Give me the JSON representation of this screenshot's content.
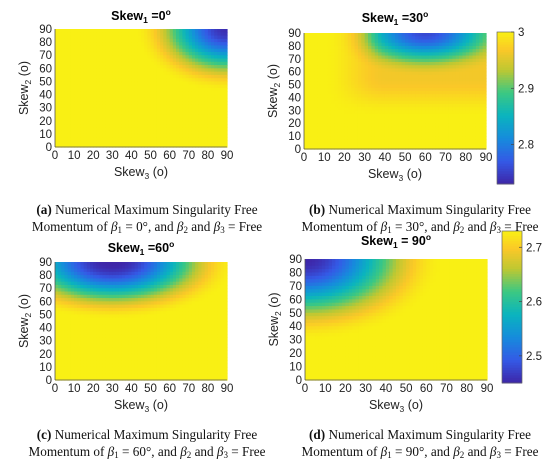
{
  "panels": [
    {
      "title_main": "Skew",
      "title_sub": "1",
      "title_value": " =0",
      "title_unit": "o",
      "xlabel_main": "Skew",
      "xlabel_sub": "3",
      "xlabel_unit": " (o)",
      "ylabel_main": "Skew",
      "ylabel_sub": "2",
      "ylabel_unit": " (o)",
      "caption": {
        "letter": "(a)",
        "line1": " Numerical Maximum Singularity Free",
        "line2_pre": "Momentum of ",
        "beta_val": " = 0°, and ",
        "tail": " = Free"
      }
    },
    {
      "title_main": "Skew",
      "title_sub": "1",
      "title_value": " =30",
      "title_unit": "o",
      "xlabel_main": "Skew",
      "xlabel_sub": "3",
      "xlabel_unit": " (o)",
      "ylabel_main": "Skew",
      "ylabel_sub": "2",
      "ylabel_unit": " (o)",
      "caption": {
        "letter": "(b)",
        "line1": " Numerical Maximum Singularity Free",
        "line2_pre": "Momentum of ",
        "beta_val": " = 30°, and ",
        "tail": " = Free"
      }
    },
    {
      "title_main": "Skew",
      "title_sub": "1",
      "title_value": " =60",
      "title_unit": "o",
      "xlabel_main": "Skew",
      "xlabel_sub": "3",
      "xlabel_unit": " (o)",
      "ylabel_main": "Skew",
      "ylabel_sub": "2",
      "ylabel_unit": " (o)",
      "caption": {
        "letter": "(c)",
        "line1": " Numerical Maximum Singularity Free",
        "line2_pre": "Momentum of ",
        "beta_val": " = 60°, and ",
        "tail": " = Free"
      }
    },
    {
      "title_main": "Skew",
      "title_sub": "1",
      "title_value": " = 90",
      "title_unit": "o",
      "xlabel_main": "Skew",
      "xlabel_sub": "3",
      "xlabel_unit": " (o)",
      "ylabel_main": "Skew",
      "ylabel_sub": "2",
      "ylabel_unit": " (o)",
      "caption": {
        "letter": "(d)",
        "line1": " Numerical Maximum Singularity Free",
        "line2_pre": "Momentum of ",
        "beta_val": " = 90°, and ",
        "tail": " = Free"
      }
    }
  ],
  "caption_symbols": {
    "beta": "β",
    "s1": "1",
    "s2": "2",
    "s3": "3",
    "and_word": " and "
  },
  "chart_data": [
    {
      "type": "heatmap",
      "x": [
        0,
        10,
        20,
        30,
        40,
        50,
        60,
        70,
        80,
        90
      ],
      "y": [
        0,
        10,
        20,
        30,
        40,
        50,
        60,
        70,
        80,
        90
      ],
      "xlim": [
        0,
        90
      ],
      "ylim": [
        0,
        90
      ],
      "min_location": [
        90,
        90
      ],
      "min_value": 2.48,
      "corner_values": {
        "x0_y0": 2.93,
        "x90_y0": 2.92,
        "x0_y90": 2.93,
        "x90_y90": 2.48
      },
      "colorbar": "none",
      "grid": false
    },
    {
      "type": "heatmap",
      "x": [
        0,
        10,
        20,
        30,
        40,
        50,
        60,
        70,
        80,
        90
      ],
      "y": [
        0,
        10,
        20,
        30,
        40,
        50,
        60,
        70,
        80,
        90
      ],
      "xlim": [
        0,
        90
      ],
      "ylim": [
        0,
        90
      ],
      "min_location": [
        60,
        90
      ],
      "min_value": 2.72,
      "colorbar": {
        "ticks": [
          "3",
          "2.9",
          "2.8"
        ],
        "tick_values": [
          3.0,
          2.9,
          2.8
        ],
        "range": [
          2.73,
          3.0
        ],
        "placement": "right"
      },
      "grid": false
    },
    {
      "type": "heatmap",
      "x": [
        0,
        10,
        20,
        30,
        40,
        50,
        60,
        70,
        80,
        90
      ],
      "y": [
        0,
        10,
        20,
        30,
        40,
        50,
        60,
        70,
        80,
        90
      ],
      "xlim": [
        0,
        90
      ],
      "ylim": [
        0,
        90
      ],
      "min_location": [
        30,
        90
      ],
      "min_value": 2.48,
      "colorbar": "none",
      "grid": false
    },
    {
      "type": "heatmap",
      "x": [
        0,
        10,
        20,
        30,
        40,
        50,
        60,
        70,
        80,
        90
      ],
      "y": [
        0,
        10,
        20,
        30,
        40,
        50,
        60,
        70,
        80,
        90
      ],
      "xlim": [
        0,
        90
      ],
      "ylim": [
        0,
        90
      ],
      "min_location": [
        0,
        90
      ],
      "min_value": 2.45,
      "colorbar": {
        "ticks": [
          "2.7",
          "2.6",
          "2.5"
        ],
        "tick_values": [
          2.7,
          2.6,
          2.5
        ],
        "range": [
          2.45,
          2.73
        ],
        "placement": "right"
      },
      "grid": false
    }
  ],
  "tick_labels": [
    "0",
    "10",
    "20",
    "30",
    "40",
    "50",
    "60",
    "70",
    "80",
    "90"
  ]
}
